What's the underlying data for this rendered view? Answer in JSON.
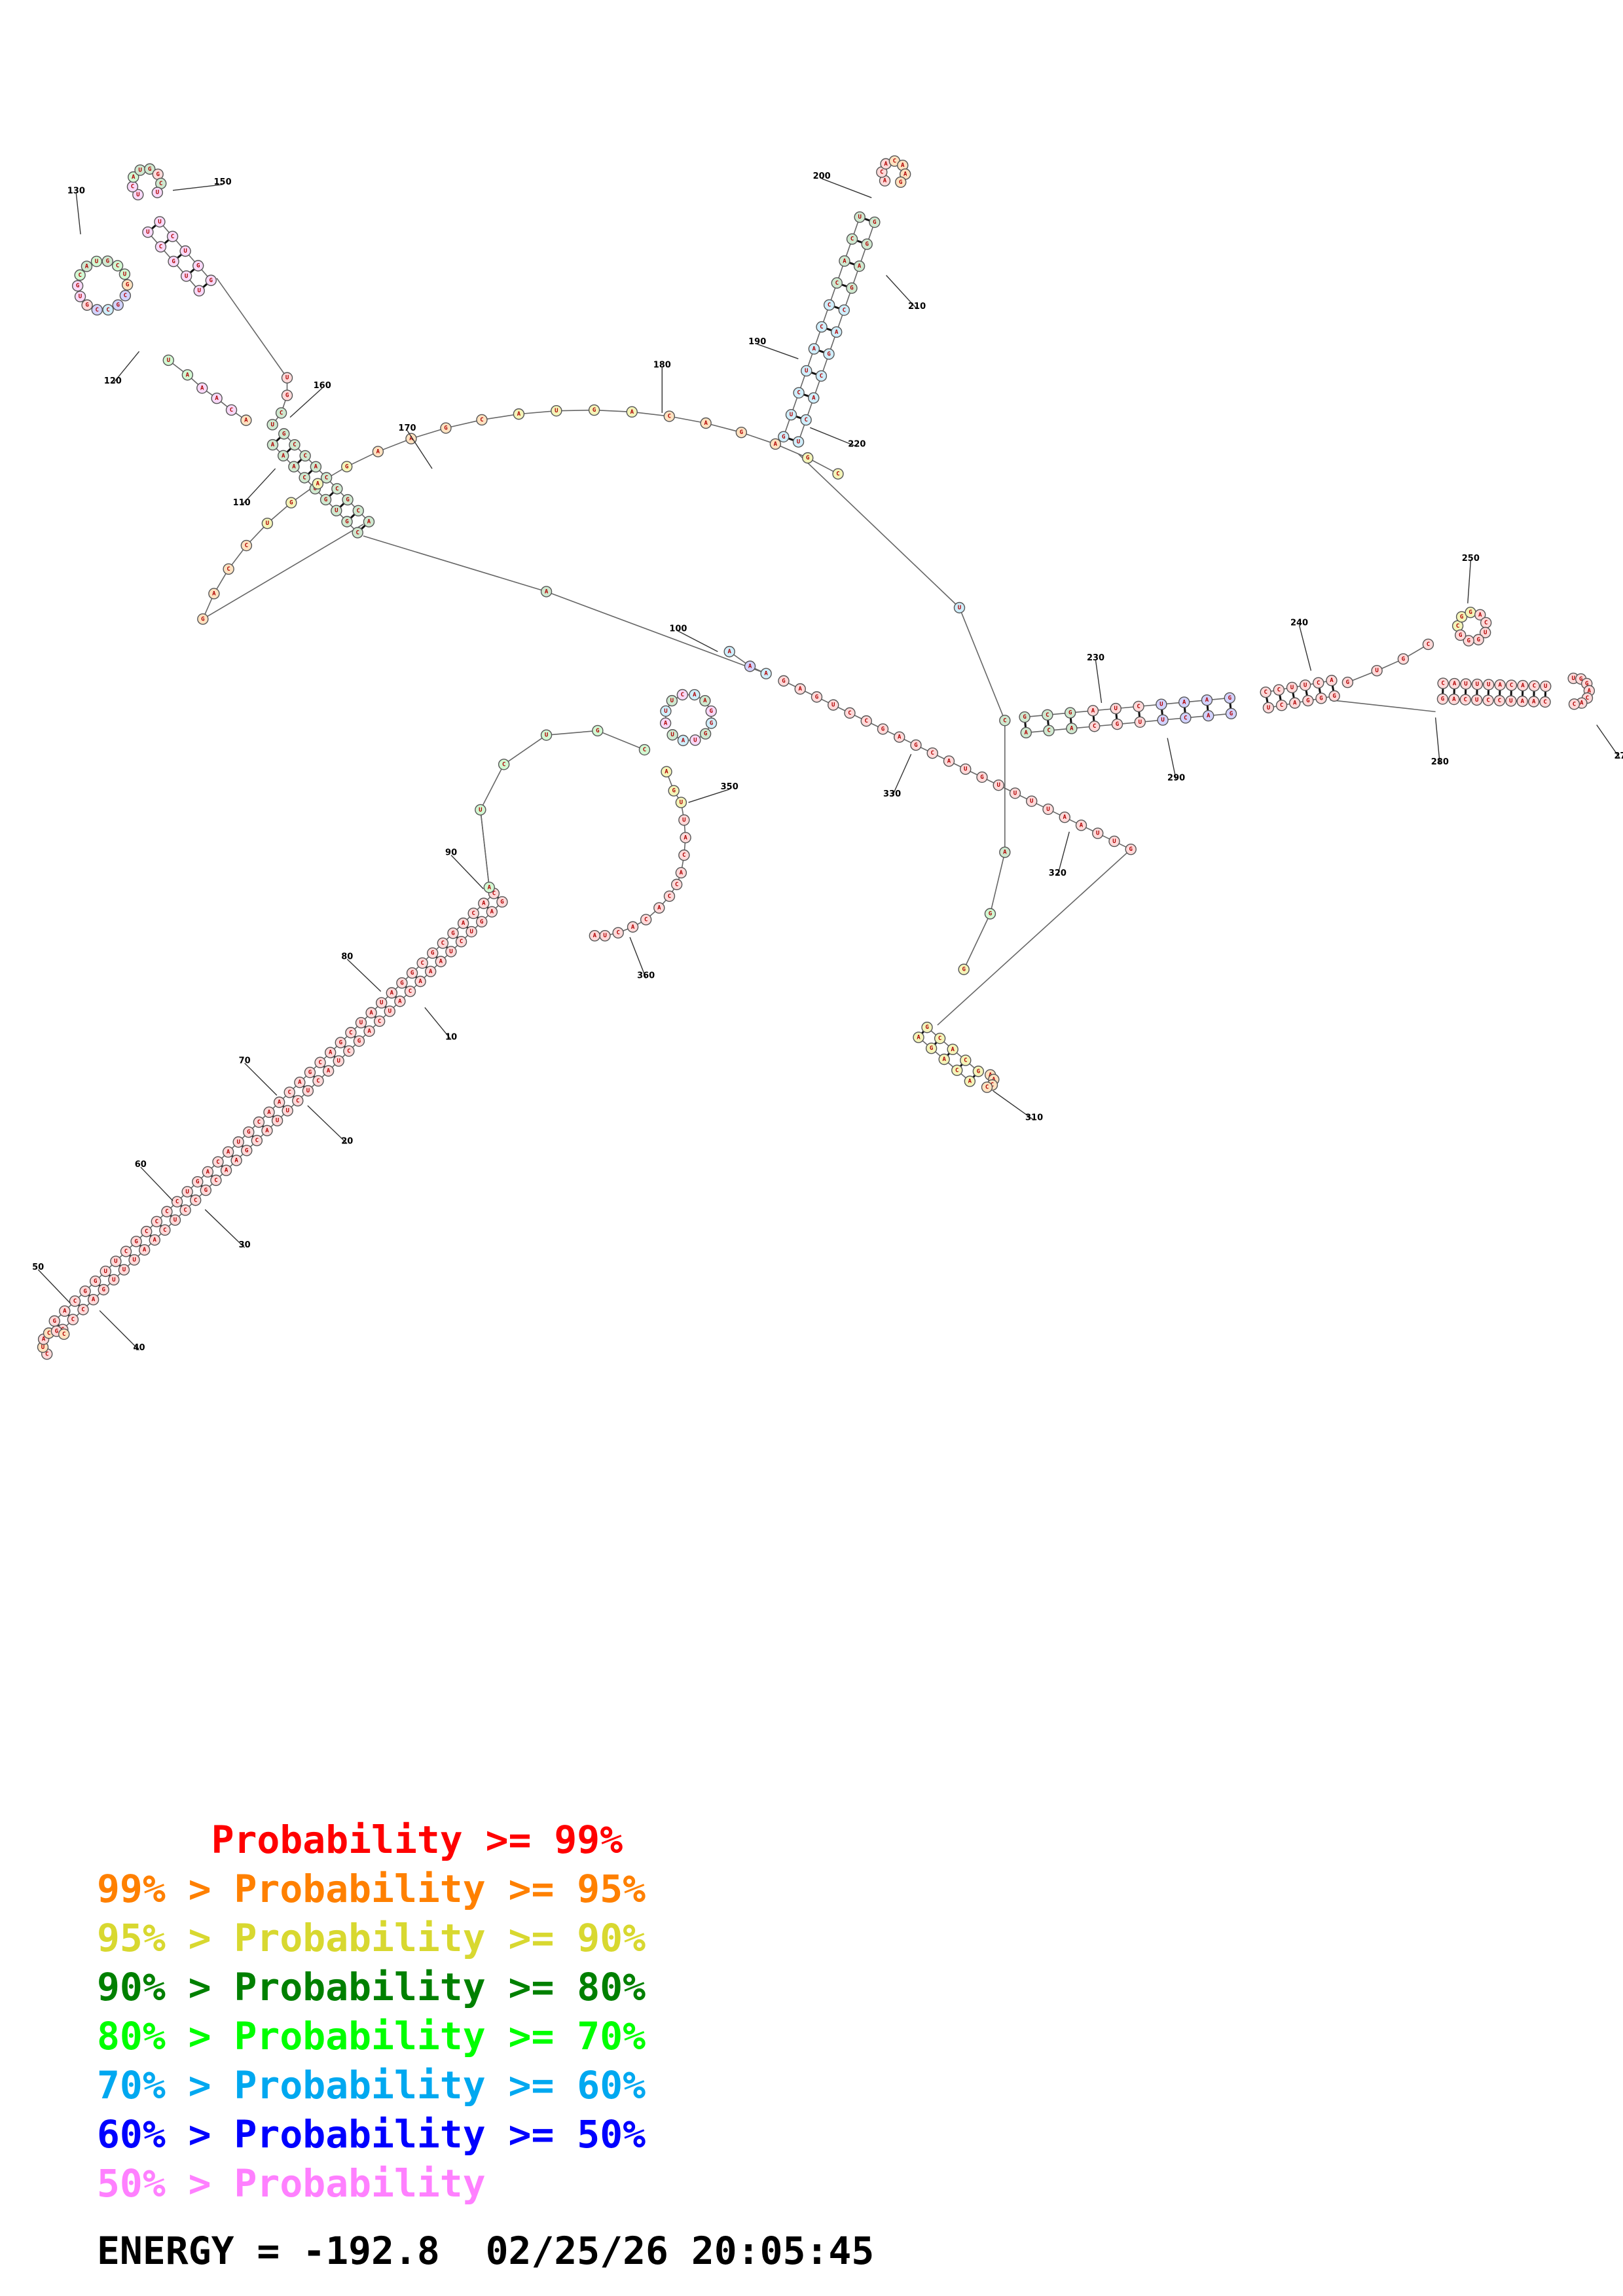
{
  "legend": [
    {
      "text": "     Probability >= 99%",
      "color": "#ff0000"
    },
    {
      "text": "99% > Probability >= 95%",
      "color": "#ff8000"
    },
    {
      "text": "95% > Probability >= 90%",
      "color": "#d8d830"
    },
    {
      "text": "90% > Probability >= 80%",
      "color": "#008000"
    },
    {
      "text": "80% > Probability >= 70%",
      "color": "#00ff00"
    },
    {
      "text": "70% > Probability >= 60%",
      "color": "#00a8f0"
    },
    {
      "text": "60% > Probability >= 50%",
      "color": "#0000ff"
    },
    {
      "text": "50% > Probability",
      "color": "#ff80ff"
    }
  ],
  "footer": {
    "energy_text": "ENERGY = -192.8  02/25/26 20:05:45"
  },
  "position_labels": [
    "10",
    "20",
    "30",
    "40",
    "50",
    "60",
    "70",
    "80",
    "90",
    "100",
    "110",
    "120",
    "130",
    "150",
    "160",
    "170",
    "180",
    "190",
    "200",
    "210",
    "220",
    "230",
    "240",
    "250",
    "280",
    "290",
    "310",
    "320",
    "330",
    "350",
    "360",
    "27"
  ],
  "probability_colors": {
    "p99": "#ff0000",
    "p95": "#ff8000",
    "p90": "#d8d830",
    "p80": "#008000",
    "p70": "#00ff00",
    "p60": "#00a8f0",
    "p50": "#0000ff",
    "plow": "#ff80ff"
  },
  "fill_colors": {
    "p99": "#ffd9d9",
    "p95": "#ffe2c0",
    "p90": "#f4f4b8",
    "p80": "#cfe8cf",
    "p70": "#d2f8d2",
    "p60": "#cfeefc",
    "p50": "#d2d2ff",
    "plow": "#f8d8f8"
  }
}
